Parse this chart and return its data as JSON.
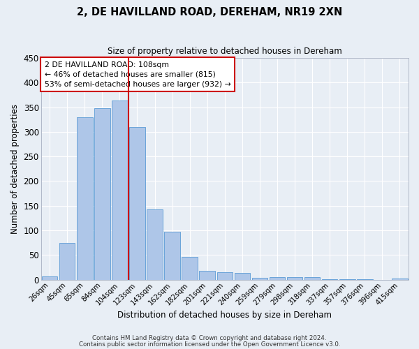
{
  "title": "2, DE HAVILLAND ROAD, DEREHAM, NR19 2XN",
  "subtitle": "Size of property relative to detached houses in Dereham",
  "xlabel": "Distribution of detached houses by size in Dereham",
  "ylabel": "Number of detached properties",
  "bar_labels": [
    "26sqm",
    "45sqm",
    "65sqm",
    "84sqm",
    "104sqm",
    "123sqm",
    "143sqm",
    "162sqm",
    "182sqm",
    "201sqm",
    "221sqm",
    "240sqm",
    "259sqm",
    "279sqm",
    "298sqm",
    "318sqm",
    "337sqm",
    "357sqm",
    "376sqm",
    "396sqm",
    "415sqm"
  ],
  "bar_values": [
    7,
    75,
    330,
    348,
    363,
    310,
    143,
    97,
    46,
    18,
    15,
    14,
    3,
    5,
    5,
    5,
    1,
    1,
    1,
    0,
    2
  ],
  "bar_color": "#aec6e8",
  "bar_edge_color": "#5b9bd5",
  "bg_color": "#e8eef5",
  "grid_color": "#ffffff",
  "vline_x_idx": 4,
  "vline_color": "#cc0000",
  "annotation_text": "2 DE HAVILLAND ROAD: 108sqm\n← 46% of detached houses are smaller (815)\n53% of semi-detached houses are larger (932) →",
  "annotation_box_color": "#ffffff",
  "annotation_box_edge_color": "#cc0000",
  "ylim": [
    0,
    450
  ],
  "yticks": [
    0,
    50,
    100,
    150,
    200,
    250,
    300,
    350,
    400,
    450
  ],
  "footer1": "Contains HM Land Registry data © Crown copyright and database right 2024.",
  "footer2": "Contains public sector information licensed under the Open Government Licence v3.0."
}
